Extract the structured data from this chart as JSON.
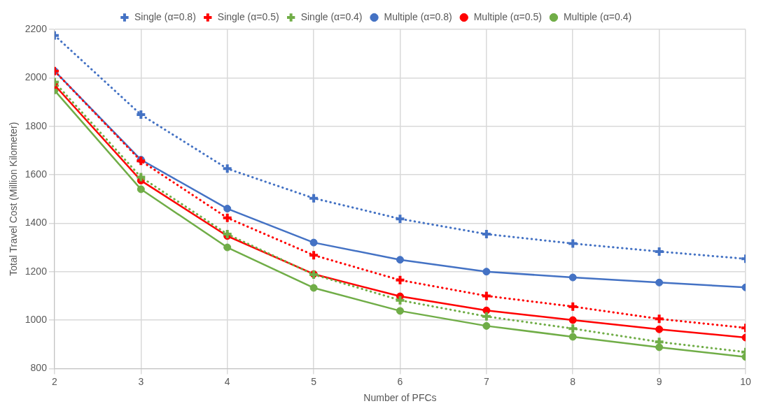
{
  "chart_data": {
    "type": "line",
    "xlabel": "Number of PFCs",
    "ylabel": "Total Travel Cost (Million Kilometer)",
    "x": [
      2,
      3,
      4,
      5,
      6,
      7,
      8,
      9,
      10
    ],
    "xlim": [
      2,
      10
    ],
    "xticks": [
      2,
      3,
      4,
      5,
      6,
      7,
      8,
      9,
      10
    ],
    "ylim": [
      800,
      2200
    ],
    "yticks": [
      800,
      1000,
      1200,
      1400,
      1600,
      1800,
      2000,
      2200
    ],
    "grid": true,
    "legend": "top",
    "series": [
      {
        "name": "Single (α=0.8)",
        "color": "#4472c4",
        "marker": "cross",
        "line_style": "dotted",
        "values": [
          2175,
          1848,
          1625,
          1503,
          1418,
          1355,
          1316,
          1283,
          1253
        ]
      },
      {
        "name": "Multiple (α=0.8)",
        "color": "#4472c4",
        "marker": "circle",
        "line_style": "solid",
        "values": [
          2028,
          1662,
          1460,
          1320,
          1249,
          1200,
          1176,
          1155,
          1135
        ]
      },
      {
        "name": "Single (α=0.5)",
        "color": "#ff0000",
        "marker": "cross",
        "line_style": "dotted",
        "values": [
          2028,
          1657,
          1422,
          1268,
          1165,
          1100,
          1056,
          1005,
          968
        ]
      },
      {
        "name": "Multiple (α=0.5)",
        "color": "#ff0000",
        "marker": "circle",
        "line_style": "solid",
        "values": [
          1970,
          1576,
          1347,
          1190,
          1098,
          1040,
          1000,
          962,
          928
        ]
      },
      {
        "name": "Single (α=0.4)",
        "color": "#70ad47",
        "marker": "cross",
        "line_style": "dotted",
        "values": [
          1982,
          1590,
          1355,
          1188,
          1082,
          1015,
          965,
          910,
          868
        ]
      },
      {
        "name": "Multiple (α=0.4)",
        "color": "#70ad47",
        "marker": "circle",
        "line_style": "solid",
        "values": [
          1948,
          1540,
          1300,
          1133,
          1038,
          976,
          931,
          888,
          848
        ]
      }
    ]
  }
}
